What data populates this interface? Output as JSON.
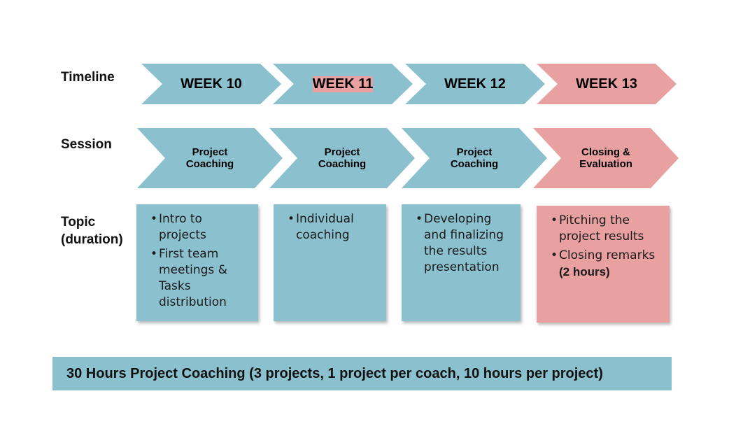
{
  "row_labels": {
    "timeline": "Timeline",
    "session": "Session",
    "topic_line1": "Topic",
    "topic_line2": "(duration)"
  },
  "timeline": [
    {
      "label": "WEEK 10",
      "color": "#8bc1cf"
    },
    {
      "label": "WEEK 11",
      "color": "#8bc1cf"
    },
    {
      "label": "WEEK 12",
      "color": "#8bc1cf"
    },
    {
      "label": "WEEK 13",
      "color": "#e8a0a1"
    }
  ],
  "sessions": [
    {
      "line1": "Project",
      "line2": "Coaching",
      "color": "#8bc1cf"
    },
    {
      "line1": "Project",
      "line2": "Coaching",
      "color": "#8bc1cf"
    },
    {
      "line1": "Project",
      "line2": "Coaching",
      "color": "#8bc1cf"
    },
    {
      "line1": "Closing &",
      "line2": "Evaluation",
      "color": "#e8a0a1"
    }
  ],
  "topics": [
    {
      "items": [
        "Intro to projects",
        "First team meetings & Tasks distribution"
      ]
    },
    {
      "items": [
        "Individual coaching"
      ]
    },
    {
      "items": [
        "Developing and finalizing the results presentation"
      ]
    },
    {
      "items": [
        "Pitching the project results",
        "Closing remarks"
      ],
      "duration": "(2 hours)"
    }
  ],
  "footer": {
    "text": "30 Hours Project Coaching (3 projects, 1 project per coach, 10 hours per project)"
  },
  "colors": {
    "blue": "#8bc1cf",
    "pink": "#e8a0a1"
  }
}
